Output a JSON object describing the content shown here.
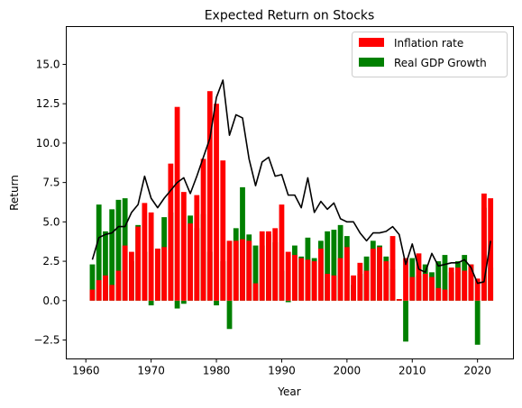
{
  "chart_data": {
    "type": "bar",
    "title": "Expected Return on Stocks",
    "xlabel": "Year",
    "ylabel": "Return",
    "xlim": [
      1957.0,
      2025.5
    ],
    "ylim": [
      -3.7,
      17.4
    ],
    "xticks": [
      1960,
      1970,
      1980,
      1990,
      2000,
      2010,
      2020
    ],
    "yticks": [
      -2.5,
      0.0,
      2.5,
      5.0,
      7.5,
      10.0,
      12.5,
      15.0
    ],
    "ytick_labels": [
      "−2.5",
      "0.0",
      "2.5",
      "5.0",
      "7.5",
      "10.0",
      "12.5",
      "15.0"
    ],
    "legend_position": "top-right",
    "grid": false,
    "x": [
      1961,
      1962,
      1963,
      1964,
      1965,
      1966,
      1967,
      1968,
      1969,
      1970,
      1971,
      1972,
      1973,
      1974,
      1975,
      1976,
      1977,
      1978,
      1979,
      1980,
      1981,
      1982,
      1983,
      1984,
      1985,
      1986,
      1987,
      1988,
      1989,
      1990,
      1991,
      1992,
      1993,
      1994,
      1995,
      1996,
      1997,
      1998,
      1999,
      2000,
      2001,
      2002,
      2003,
      2004,
      2005,
      2006,
      2007,
      2008,
      2009,
      2010,
      2011,
      2012,
      2013,
      2014,
      2015,
      2016,
      2017,
      2018,
      2019,
      2020,
      2021,
      2022
    ],
    "series": [
      {
        "name": "Inflation rate",
        "kind": "bar",
        "color": "#ff0000",
        "values": [
          0.7,
          1.3,
          1.6,
          1.0,
          1.9,
          3.5,
          3.1,
          4.7,
          6.2,
          5.6,
          3.3,
          3.4,
          8.7,
          12.3,
          6.9,
          4.9,
          6.7,
          9.0,
          13.3,
          12.5,
          8.9,
          3.8,
          3.8,
          3.9,
          3.8,
          1.1,
          4.4,
          4.4,
          4.6,
          6.1,
          3.1,
          2.9,
          2.7,
          2.6,
          2.5,
          3.3,
          1.7,
          1.6,
          2.7,
          3.4,
          1.6,
          2.4,
          1.9,
          3.3,
          3.4,
          2.5,
          4.1,
          0.1,
          2.7,
          1.5,
          3.0,
          1.7,
          1.5,
          0.8,
          0.7,
          2.1,
          2.1,
          1.9,
          2.3,
          1.4,
          6.8,
          6.5
        ]
      },
      {
        "name": "Real GDP Growth",
        "kind": "bar",
        "color": "#008000",
        "values": [
          2.3,
          6.1,
          4.4,
          5.8,
          6.4,
          6.5,
          2.5,
          4.8,
          3.1,
          -0.3,
          3.3,
          5.3,
          5.6,
          -0.5,
          -0.2,
          5.4,
          4.6,
          5.5,
          3.1,
          -0.3,
          2.5,
          -1.8,
          4.6,
          7.2,
          4.2,
          3.5,
          3.5,
          4.2,
          3.7,
          1.9,
          -0.1,
          3.5,
          2.8,
          4.0,
          2.7,
          3.8,
          4.4,
          4.5,
          4.8,
          4.1,
          1.0,
          1.7,
          2.8,
          3.8,
          3.5,
          2.8,
          2.0,
          0.1,
          -2.6,
          2.7,
          1.6,
          2.3,
          1.8,
          2.5,
          2.9,
          1.8,
          2.5,
          2.9,
          2.3,
          -2.8,
          5.9,
          2.1
        ]
      },
      {
        "name": "",
        "kind": "line",
        "color": "#000000",
        "values": [
          2.6,
          4.0,
          4.2,
          4.3,
          4.7,
          4.7,
          5.6,
          6.1,
          7.9,
          6.5,
          5.9,
          6.5,
          7.0,
          7.5,
          7.8,
          6.8,
          7.9,
          9.1,
          10.3,
          12.9,
          14.0,
          10.5,
          11.8,
          11.6,
          9.0,
          7.3,
          8.8,
          9.1,
          7.9,
          8.0,
          6.7,
          6.7,
          5.9,
          7.8,
          5.6,
          6.3,
          5.8,
          6.2,
          5.2,
          5.0,
          5.0,
          4.3,
          3.8,
          4.3,
          4.3,
          4.4,
          4.7,
          4.2,
          2.3,
          3.6,
          2.0,
          1.8,
          3.0,
          2.2,
          2.3,
          2.4,
          2.4,
          2.6,
          2.1,
          1.1,
          1.2,
          3.8
        ]
      }
    ]
  }
}
